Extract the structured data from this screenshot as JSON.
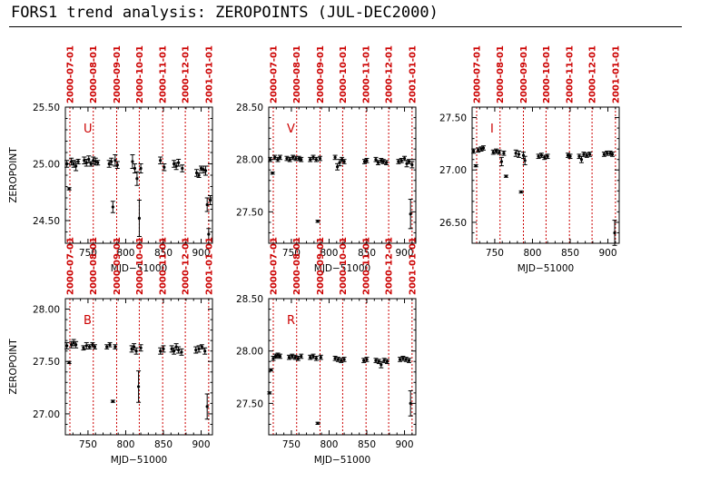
{
  "page": {
    "title": "FORS1 trend analysis: ZEROPOINTS (JUL-DEC2000)"
  },
  "colors": {
    "date_line": "#cc0000",
    "band_label": "#cc0000",
    "date_label": "#cc0000",
    "points": "#000000"
  },
  "chart_data": [
    {
      "type": "scatter",
      "band": "U",
      "xlabel": "MJD−51000",
      "ylabel": "ZEROPOINT",
      "xlim": [
        720,
        915
      ],
      "ylim": [
        24.3,
        25.5
      ],
      "xticks": [
        750,
        800,
        850,
        900
      ],
      "yticks": [
        24.5,
        25.0,
        25.5
      ],
      "ytick_labels": [
        "24.50",
        "25.00",
        "25.50"
      ],
      "date_markers": [
        {
          "label": "2000-07-01",
          "mjd": 726
        },
        {
          "label": "2000-08-01",
          "mjd": 757
        },
        {
          "label": "2000-09-01",
          "mjd": 788
        },
        {
          "label": "2000-10-01",
          "mjd": 818
        },
        {
          "label": "2000-11-01",
          "mjd": 849
        },
        {
          "label": "2000-12-01",
          "mjd": 879
        },
        {
          "label": "2001-01-01",
          "mjd": 910
        }
      ],
      "points": [
        {
          "x": 722,
          "y": 25.0,
          "e": 0.03
        },
        {
          "x": 725,
          "y": 24.78,
          "e": 0.01
        },
        {
          "x": 728,
          "y": 25.02,
          "e": 0.03
        },
        {
          "x": 731,
          "y": 25.0,
          "e": 0.03
        },
        {
          "x": 734,
          "y": 24.98,
          "e": 0.04
        },
        {
          "x": 737,
          "y": 25.02,
          "e": 0.02
        },
        {
          "x": 745,
          "y": 25.03,
          "e": 0.03
        },
        {
          "x": 748,
          "y": 25.01,
          "e": 0.03
        },
        {
          "x": 751,
          "y": 25.04,
          "e": 0.03
        },
        {
          "x": 754,
          "y": 25.0,
          "e": 0.02
        },
        {
          "x": 757,
          "y": 25.03,
          "e": 0.03
        },
        {
          "x": 760,
          "y": 25.02,
          "e": 0.03
        },
        {
          "x": 763,
          "y": 25.01,
          "e": 0.02
        },
        {
          "x": 778,
          "y": 25.0,
          "e": 0.03
        },
        {
          "x": 781,
          "y": 25.02,
          "e": 0.03
        },
        {
          "x": 783,
          "y": 24.62,
          "e": 0.05
        },
        {
          "x": 786,
          "y": 25.03,
          "e": 0.05
        },
        {
          "x": 789,
          "y": 24.99,
          "e": 0.03
        },
        {
          "x": 809,
          "y": 25.02,
          "e": 0.06
        },
        {
          "x": 812,
          "y": 24.96,
          "e": 0.04
        },
        {
          "x": 815,
          "y": 24.87,
          "e": 0.06
        },
        {
          "x": 818,
          "y": 24.52,
          "e": 0.16
        },
        {
          "x": 820,
          "y": 24.96,
          "e": 0.04
        },
        {
          "x": 846,
          "y": 25.03,
          "e": 0.03
        },
        {
          "x": 851,
          "y": 24.97,
          "e": 0.03
        },
        {
          "x": 864,
          "y": 25.0,
          "e": 0.03
        },
        {
          "x": 867,
          "y": 24.98,
          "e": 0.03
        },
        {
          "x": 870,
          "y": 25.01,
          "e": 0.03
        },
        {
          "x": 875,
          "y": 24.96,
          "e": 0.03
        },
        {
          "x": 894,
          "y": 24.92,
          "e": 0.03
        },
        {
          "x": 897,
          "y": 24.9,
          "e": 0.02
        },
        {
          "x": 900,
          "y": 24.96,
          "e": 0.02
        },
        {
          "x": 903,
          "y": 24.95,
          "e": 0.03
        },
        {
          "x": 906,
          "y": 24.94,
          "e": 0.04
        },
        {
          "x": 908,
          "y": 24.64,
          "e": 0.06
        },
        {
          "x": 910,
          "y": 24.38,
          "e": 0.05
        },
        {
          "x": 912,
          "y": 24.68,
          "e": 0.04
        }
      ]
    },
    {
      "type": "scatter",
      "band": "V",
      "xlabel": "MJD−51000",
      "ylabel": "",
      "xlim": [
        720,
        915
      ],
      "ylim": [
        27.2,
        28.5
      ],
      "xticks": [
        750,
        800,
        850,
        900
      ],
      "yticks": [
        27.5,
        28.0,
        28.5
      ],
      "ytick_labels": [
        "27.50",
        "28.00",
        "28.50"
      ],
      "date_markers": [
        {
          "label": "2000-07-01",
          "mjd": 726
        },
        {
          "label": "2000-08-01",
          "mjd": 757
        },
        {
          "label": "2000-09-01",
          "mjd": 788
        },
        {
          "label": "2000-10-01",
          "mjd": 818
        },
        {
          "label": "2000-11-01",
          "mjd": 849
        },
        {
          "label": "2000-12-01",
          "mjd": 879
        },
        {
          "label": "2001-01-01",
          "mjd": 910
        }
      ],
      "points": [
        {
          "x": 722,
          "y": 28.0,
          "e": 0.02
        },
        {
          "x": 725,
          "y": 27.87,
          "e": 0.01
        },
        {
          "x": 728,
          "y": 28.02,
          "e": 0.02
        },
        {
          "x": 732,
          "y": 28.0,
          "e": 0.02
        },
        {
          "x": 735,
          "y": 28.02,
          "e": 0.02
        },
        {
          "x": 744,
          "y": 28.01,
          "e": 0.02
        },
        {
          "x": 748,
          "y": 28.0,
          "e": 0.02
        },
        {
          "x": 752,
          "y": 28.02,
          "e": 0.02
        },
        {
          "x": 756,
          "y": 28.01,
          "e": 0.02
        },
        {
          "x": 760,
          "y": 28.01,
          "e": 0.02
        },
        {
          "x": 763,
          "y": 28.0,
          "e": 0.02
        },
        {
          "x": 775,
          "y": 28.0,
          "e": 0.02
        },
        {
          "x": 779,
          "y": 28.02,
          "e": 0.02
        },
        {
          "x": 783,
          "y": 28.0,
          "e": 0.02
        },
        {
          "x": 785,
          "y": 27.41,
          "e": 0.01
        },
        {
          "x": 788,
          "y": 28.01,
          "e": 0.02
        },
        {
          "x": 808,
          "y": 28.02,
          "e": 0.02
        },
        {
          "x": 811,
          "y": 27.93,
          "e": 0.03
        },
        {
          "x": 814,
          "y": 27.97,
          "e": 0.03
        },
        {
          "x": 817,
          "y": 28.0,
          "e": 0.02
        },
        {
          "x": 820,
          "y": 27.98,
          "e": 0.02
        },
        {
          "x": 847,
          "y": 27.98,
          "e": 0.02
        },
        {
          "x": 850,
          "y": 27.99,
          "e": 0.02
        },
        {
          "x": 862,
          "y": 28.0,
          "e": 0.02
        },
        {
          "x": 865,
          "y": 27.97,
          "e": 0.02
        },
        {
          "x": 869,
          "y": 27.99,
          "e": 0.02
        },
        {
          "x": 872,
          "y": 27.98,
          "e": 0.02
        },
        {
          "x": 876,
          "y": 27.97,
          "e": 0.02
        },
        {
          "x": 892,
          "y": 27.98,
          "e": 0.02
        },
        {
          "x": 896,
          "y": 27.99,
          "e": 0.02
        },
        {
          "x": 900,
          "y": 28.01,
          "e": 0.02
        },
        {
          "x": 903,
          "y": 27.96,
          "e": 0.03
        },
        {
          "x": 906,
          "y": 27.98,
          "e": 0.02
        },
        {
          "x": 908,
          "y": 27.48,
          "e": 0.14
        },
        {
          "x": 910,
          "y": 27.95,
          "e": 0.03
        }
      ]
    },
    {
      "type": "scatter",
      "band": "I",
      "xlabel": "MJD−51000",
      "ylabel": "",
      "xlim": [
        720,
        915
      ],
      "ylim": [
        26.3,
        27.6
      ],
      "xticks": [
        750,
        800,
        850,
        900
      ],
      "yticks": [
        26.5,
        27.0,
        27.5
      ],
      "ytick_labels": [
        "26.50",
        "27.00",
        "27.50"
      ],
      "date_markers": [
        {
          "label": "2000-07-01",
          "mjd": 726
        },
        {
          "label": "2000-08-01",
          "mjd": 757
        },
        {
          "label": "2000-09-01",
          "mjd": 788
        },
        {
          "label": "2000-10-01",
          "mjd": 818
        },
        {
          "label": "2000-11-01",
          "mjd": 849
        },
        {
          "label": "2000-12-01",
          "mjd": 879
        },
        {
          "label": "2001-01-01",
          "mjd": 910
        }
      ],
      "points": [
        {
          "x": 722,
          "y": 27.18,
          "e": 0.02
        },
        {
          "x": 725,
          "y": 27.04,
          "e": 0.01
        },
        {
          "x": 728,
          "y": 27.19,
          "e": 0.02
        },
        {
          "x": 732,
          "y": 27.2,
          "e": 0.02
        },
        {
          "x": 735,
          "y": 27.21,
          "e": 0.02
        },
        {
          "x": 748,
          "y": 27.17,
          "e": 0.02
        },
        {
          "x": 752,
          "y": 27.18,
          "e": 0.02
        },
        {
          "x": 756,
          "y": 27.17,
          "e": 0.02
        },
        {
          "x": 759,
          "y": 27.08,
          "e": 0.04
        },
        {
          "x": 762,
          "y": 27.16,
          "e": 0.02
        },
        {
          "x": 765,
          "y": 26.94,
          "e": 0.01
        },
        {
          "x": 778,
          "y": 27.16,
          "e": 0.03
        },
        {
          "x": 782,
          "y": 27.15,
          "e": 0.03
        },
        {
          "x": 785,
          "y": 26.79,
          "e": 0.01
        },
        {
          "x": 788,
          "y": 27.14,
          "e": 0.03
        },
        {
          "x": 790,
          "y": 27.09,
          "e": 0.04
        },
        {
          "x": 808,
          "y": 27.13,
          "e": 0.02
        },
        {
          "x": 812,
          "y": 27.14,
          "e": 0.02
        },
        {
          "x": 816,
          "y": 27.12,
          "e": 0.02
        },
        {
          "x": 820,
          "y": 27.13,
          "e": 0.02
        },
        {
          "x": 847,
          "y": 27.14,
          "e": 0.02
        },
        {
          "x": 850,
          "y": 27.13,
          "e": 0.02
        },
        {
          "x": 862,
          "y": 27.13,
          "e": 0.02
        },
        {
          "x": 865,
          "y": 27.1,
          "e": 0.03
        },
        {
          "x": 868,
          "y": 27.15,
          "e": 0.02
        },
        {
          "x": 872,
          "y": 27.14,
          "e": 0.02
        },
        {
          "x": 876,
          "y": 27.15,
          "e": 0.02
        },
        {
          "x": 895,
          "y": 27.15,
          "e": 0.02
        },
        {
          "x": 899,
          "y": 27.16,
          "e": 0.02
        },
        {
          "x": 903,
          "y": 27.16,
          "e": 0.02
        },
        {
          "x": 906,
          "y": 27.15,
          "e": 0.02
        },
        {
          "x": 909,
          "y": 26.4,
          "e": 0.12
        }
      ]
    },
    {
      "type": "scatter",
      "band": "B",
      "xlabel": "MJD−51000",
      "ylabel": "ZEROPOINT",
      "xlim": [
        720,
        915
      ],
      "ylim": [
        26.8,
        28.1
      ],
      "xticks": [
        750,
        800,
        850,
        900
      ],
      "yticks": [
        27.0,
        27.5,
        28.0
      ],
      "ytick_labels": [
        "27.00",
        "27.50",
        "28.00"
      ],
      "date_markers": [
        {
          "label": "2000-07-01",
          "mjd": 726
        },
        {
          "label": "2000-08-01",
          "mjd": 757
        },
        {
          "label": "2000-09-01",
          "mjd": 788
        },
        {
          "label": "2000-10-01",
          "mjd": 818
        },
        {
          "label": "2000-11-01",
          "mjd": 849
        },
        {
          "label": "2000-12-01",
          "mjd": 879
        },
        {
          "label": "2001-01-01",
          "mjd": 910
        }
      ],
      "points": [
        {
          "x": 722,
          "y": 27.65,
          "e": 0.03
        },
        {
          "x": 725,
          "y": 27.49,
          "e": 0.01
        },
        {
          "x": 728,
          "y": 27.66,
          "e": 0.03
        },
        {
          "x": 731,
          "y": 27.68,
          "e": 0.03
        },
        {
          "x": 734,
          "y": 27.66,
          "e": 0.03
        },
        {
          "x": 744,
          "y": 27.63,
          "e": 0.02
        },
        {
          "x": 748,
          "y": 27.65,
          "e": 0.03
        },
        {
          "x": 752,
          "y": 27.64,
          "e": 0.02
        },
        {
          "x": 756,
          "y": 27.66,
          "e": 0.02
        },
        {
          "x": 759,
          "y": 27.64,
          "e": 0.02
        },
        {
          "x": 775,
          "y": 27.64,
          "e": 0.02
        },
        {
          "x": 779,
          "y": 27.66,
          "e": 0.02
        },
        {
          "x": 783,
          "y": 27.12,
          "e": 0.01
        },
        {
          "x": 786,
          "y": 27.64,
          "e": 0.02
        },
        {
          "x": 808,
          "y": 27.62,
          "e": 0.03
        },
        {
          "x": 811,
          "y": 27.64,
          "e": 0.03
        },
        {
          "x": 814,
          "y": 27.6,
          "e": 0.03
        },
        {
          "x": 817,
          "y": 27.26,
          "e": 0.15
        },
        {
          "x": 820,
          "y": 27.63,
          "e": 0.03
        },
        {
          "x": 846,
          "y": 27.6,
          "e": 0.03
        },
        {
          "x": 850,
          "y": 27.62,
          "e": 0.03
        },
        {
          "x": 861,
          "y": 27.62,
          "e": 0.03
        },
        {
          "x": 864,
          "y": 27.6,
          "e": 0.03
        },
        {
          "x": 867,
          "y": 27.64,
          "e": 0.03
        },
        {
          "x": 870,
          "y": 27.61,
          "e": 0.03
        },
        {
          "x": 874,
          "y": 27.59,
          "e": 0.03
        },
        {
          "x": 893,
          "y": 27.61,
          "e": 0.03
        },
        {
          "x": 897,
          "y": 27.62,
          "e": 0.03
        },
        {
          "x": 901,
          "y": 27.64,
          "e": 0.02
        },
        {
          "x": 905,
          "y": 27.6,
          "e": 0.03
        },
        {
          "x": 908,
          "y": 27.07,
          "e": 0.12
        }
      ]
    },
    {
      "type": "scatter",
      "band": "R",
      "xlabel": "MJD−51000",
      "ylabel": "",
      "xlim": [
        720,
        915
      ],
      "ylim": [
        27.2,
        28.5
      ],
      "xticks": [
        750,
        800,
        850,
        900
      ],
      "yticks": [
        27.5,
        28.0,
        28.5
      ],
      "ytick_labels": [
        "27.50",
        "28.00",
        "28.50"
      ],
      "date_markers": [
        {
          "label": "2000-07-01",
          "mjd": 726
        },
        {
          "label": "2000-08-01",
          "mjd": 757
        },
        {
          "label": "2000-09-01",
          "mjd": 788
        },
        {
          "label": "2000-10-01",
          "mjd": 818
        },
        {
          "label": "2000-11-01",
          "mjd": 849
        },
        {
          "label": "2000-12-01",
          "mjd": 879
        },
        {
          "label": "2001-01-01",
          "mjd": 910
        }
      ],
      "points": [
        {
          "x": 721,
          "y": 27.6,
          "e": 0.01
        },
        {
          "x": 723,
          "y": 27.82,
          "e": 0.01
        },
        {
          "x": 726,
          "y": 27.93,
          "e": 0.02
        },
        {
          "x": 729,
          "y": 27.95,
          "e": 0.02
        },
        {
          "x": 732,
          "y": 27.96,
          "e": 0.02
        },
        {
          "x": 735,
          "y": 27.95,
          "e": 0.02
        },
        {
          "x": 747,
          "y": 27.94,
          "e": 0.02
        },
        {
          "x": 751,
          "y": 27.95,
          "e": 0.02
        },
        {
          "x": 755,
          "y": 27.94,
          "e": 0.02
        },
        {
          "x": 759,
          "y": 27.93,
          "e": 0.02
        },
        {
          "x": 763,
          "y": 27.95,
          "e": 0.02
        },
        {
          "x": 775,
          "y": 27.94,
          "e": 0.02
        },
        {
          "x": 779,
          "y": 27.95,
          "e": 0.02
        },
        {
          "x": 783,
          "y": 27.93,
          "e": 0.02
        },
        {
          "x": 785,
          "y": 27.31,
          "e": 0.01
        },
        {
          "x": 789,
          "y": 27.94,
          "e": 0.02
        },
        {
          "x": 808,
          "y": 27.93,
          "e": 0.02
        },
        {
          "x": 812,
          "y": 27.92,
          "e": 0.02
        },
        {
          "x": 816,
          "y": 27.91,
          "e": 0.02
        },
        {
          "x": 820,
          "y": 27.92,
          "e": 0.02
        },
        {
          "x": 846,
          "y": 27.91,
          "e": 0.02
        },
        {
          "x": 850,
          "y": 27.92,
          "e": 0.02
        },
        {
          "x": 862,
          "y": 27.91,
          "e": 0.02
        },
        {
          "x": 866,
          "y": 27.9,
          "e": 0.02
        },
        {
          "x": 869,
          "y": 27.87,
          "e": 0.03
        },
        {
          "x": 873,
          "y": 27.91,
          "e": 0.02
        },
        {
          "x": 877,
          "y": 27.9,
          "e": 0.02
        },
        {
          "x": 894,
          "y": 27.92,
          "e": 0.02
        },
        {
          "x": 898,
          "y": 27.93,
          "e": 0.02
        },
        {
          "x": 902,
          "y": 27.92,
          "e": 0.02
        },
        {
          "x": 906,
          "y": 27.91,
          "e": 0.02
        },
        {
          "x": 908,
          "y": 27.5,
          "e": 0.12
        }
      ]
    }
  ]
}
